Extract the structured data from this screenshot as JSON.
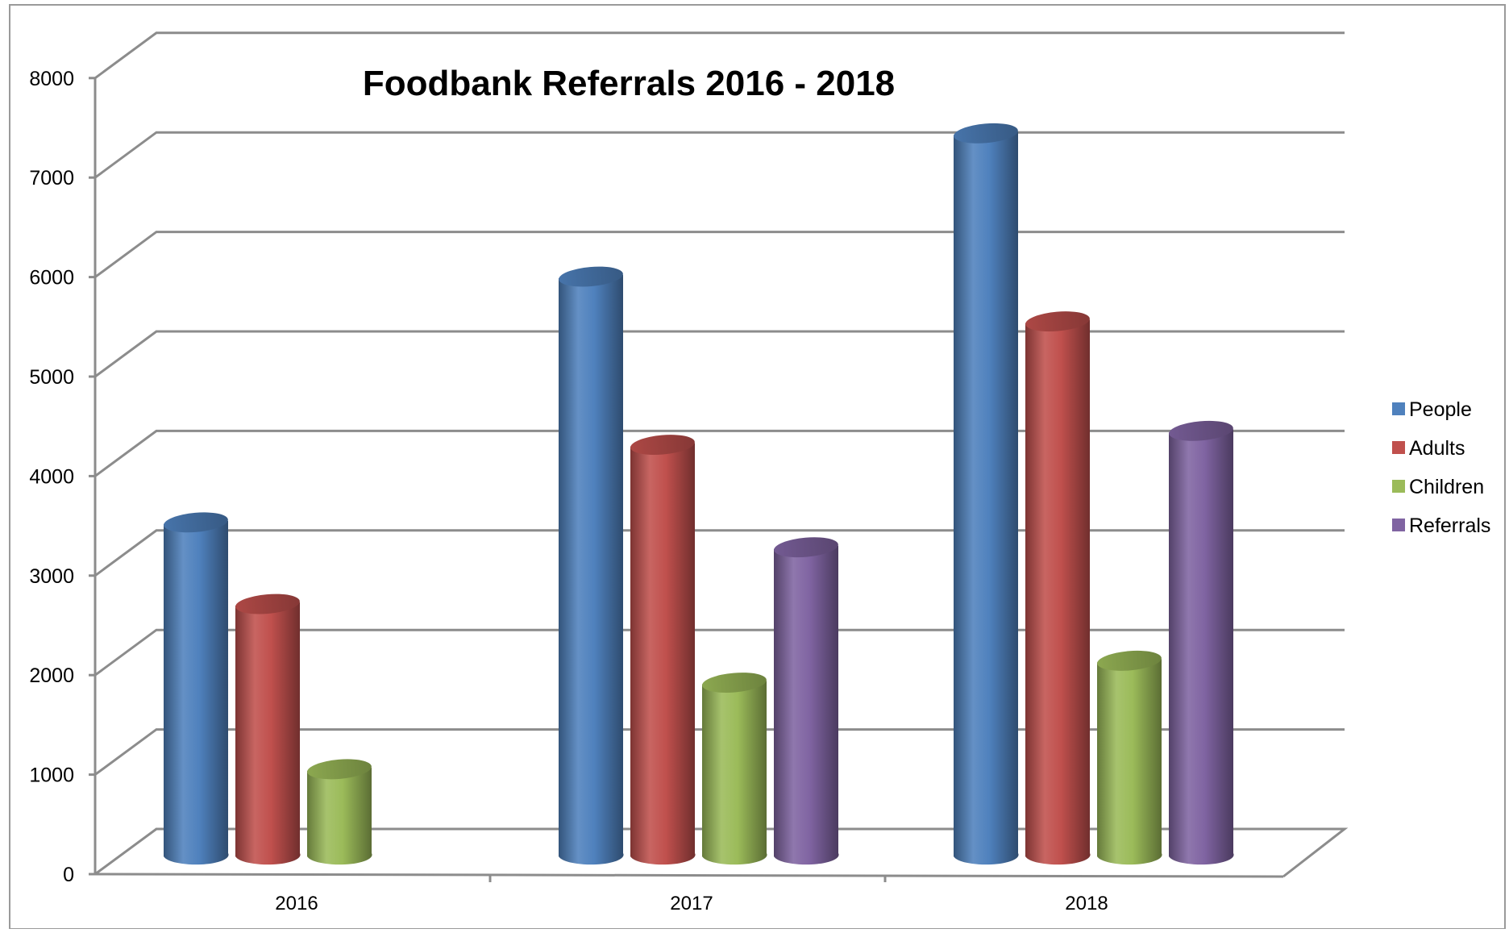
{
  "chart_data": {
    "type": "bar",
    "title": "Foodbank Referrals 2016 - 2018",
    "categories": [
      "2016",
      "2017",
      "2018"
    ],
    "series": [
      {
        "name": "People",
        "values": [
          3340,
          5810,
          7250
        ]
      },
      {
        "name": "Adults",
        "values": [
          2520,
          4120,
          5360
        ]
      },
      {
        "name": "Children",
        "values": [
          860,
          1730,
          1950
        ]
      },
      {
        "name": "Referrals",
        "values": [
          null,
          3090,
          4260
        ]
      }
    ],
    "y_ticks": [
      "0",
      "1000",
      "2000",
      "3000",
      "4000",
      "5000",
      "6000",
      "7000",
      "8000"
    ],
    "ylim": [
      0,
      8000
    ],
    "grid": true,
    "legend_position": "right",
    "colors": {
      "People": "#4f81bd",
      "Adults": "#c0504d",
      "Children": "#9bbb59",
      "Referrals": "#8064a2"
    }
  }
}
